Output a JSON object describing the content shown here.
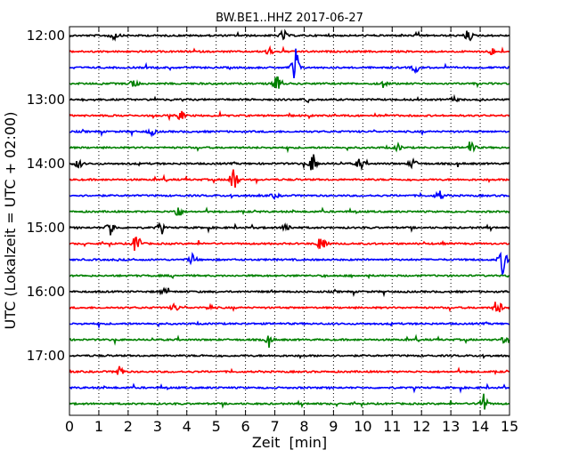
{
  "chart_data": {
    "type": "line",
    "title": "BW.BE1..HHZ 2017-06-27",
    "xlabel": "Zeit  [min]",
    "ylabel": "UTC (Lokalzeit = UTC + 02:00)",
    "xlim": [
      0,
      15
    ],
    "x_ticks": [
      0,
      1,
      2,
      3,
      4,
      5,
      6,
      7,
      8,
      9,
      10,
      11,
      12,
      13,
      14,
      15
    ],
    "x_grid": "dotted vertical lines at every minute",
    "y_ticks": [
      "12:00",
      "13:00",
      "14:00",
      "15:00",
      "16:00",
      "17:00"
    ],
    "trace_interval_min": 15,
    "colors": [
      "#000000",
      "#ff0000",
      "#0000ff",
      "#008000"
    ],
    "traces": [
      {
        "start": "12:00",
        "color": "#000000",
        "events": [
          [
            1.5,
            0.5
          ],
          [
            7.3,
            0.6
          ],
          [
            13.6,
            0.7
          ]
        ]
      },
      {
        "start": "12:15",
        "color": "#ff0000",
        "events": [
          [
            6.8,
            0.5
          ],
          [
            14.4,
            0.4
          ]
        ]
      },
      {
        "start": "12:30",
        "color": "#0000ff",
        "events": [
          [
            7.7,
            2.6
          ],
          [
            11.8,
            0.5
          ]
        ]
      },
      {
        "start": "12:45",
        "color": "#008000",
        "events": [
          [
            2.2,
            0.6
          ],
          [
            7.1,
            1.4
          ],
          [
            10.7,
            0.5
          ]
        ]
      },
      {
        "start": "13:00",
        "color": "#000000",
        "events": [
          [
            8.1,
            0.3
          ],
          [
            13.1,
            0.3
          ]
        ]
      },
      {
        "start": "13:15",
        "color": "#ff0000",
        "events": [
          [
            3.8,
            0.6
          ]
        ]
      },
      {
        "start": "13:30",
        "color": "#0000ff",
        "events": [
          [
            2.8,
            0.4
          ]
        ]
      },
      {
        "start": "13:45",
        "color": "#008000",
        "events": [
          [
            13.7,
            0.9
          ],
          [
            11.2,
            0.4
          ]
        ]
      },
      {
        "start": "14:00",
        "color": "#000000",
        "events": [
          [
            8.3,
            1.2
          ],
          [
            9.9,
            0.7
          ],
          [
            11.7,
            0.6
          ],
          [
            0.3,
            0.5
          ]
        ]
      },
      {
        "start": "14:15",
        "color": "#ff0000",
        "events": [
          [
            5.6,
            1.9
          ]
        ]
      },
      {
        "start": "14:30",
        "color": "#0000ff",
        "events": [
          [
            12.6,
            0.6
          ],
          [
            7.0,
            0.3
          ]
        ]
      },
      {
        "start": "14:45",
        "color": "#008000",
        "events": [
          [
            3.7,
            0.8
          ]
        ]
      },
      {
        "start": "15:00",
        "color": "#000000",
        "events": [
          [
            1.4,
            1.1
          ],
          [
            3.1,
            0.5
          ],
          [
            7.4,
            0.6
          ]
        ]
      },
      {
        "start": "15:15",
        "color": "#ff0000",
        "events": [
          [
            2.3,
            1.5
          ],
          [
            8.6,
            1.4
          ]
        ]
      },
      {
        "start": "15:30",
        "color": "#0000ff",
        "events": [
          [
            14.8,
            2.0
          ],
          [
            4.2,
            0.6
          ]
        ]
      },
      {
        "start": "15:45",
        "color": "#008000",
        "events": []
      },
      {
        "start": "16:00",
        "color": "#000000",
        "events": [
          [
            3.2,
            0.3
          ]
        ]
      },
      {
        "start": "16:15",
        "color": "#ff0000",
        "events": [
          [
            14.6,
            1.1
          ],
          [
            3.6,
            0.5
          ],
          [
            4.8,
            0.3
          ]
        ]
      },
      {
        "start": "16:30",
        "color": "#0000ff",
        "events": []
      },
      {
        "start": "16:45",
        "color": "#008000",
        "events": [
          [
            6.8,
            0.6
          ],
          [
            14.8,
            0.3
          ]
        ]
      },
      {
        "start": "17:00",
        "color": "#000000",
        "events": []
      },
      {
        "start": "17:15",
        "color": "#ff0000",
        "events": [
          [
            1.7,
            0.8
          ]
        ]
      },
      {
        "start": "17:30",
        "color": "#0000ff",
        "events": []
      },
      {
        "start": "17:45",
        "color": "#008000",
        "events": [
          [
            14.1,
            1.4
          ]
        ]
      }
    ]
  }
}
